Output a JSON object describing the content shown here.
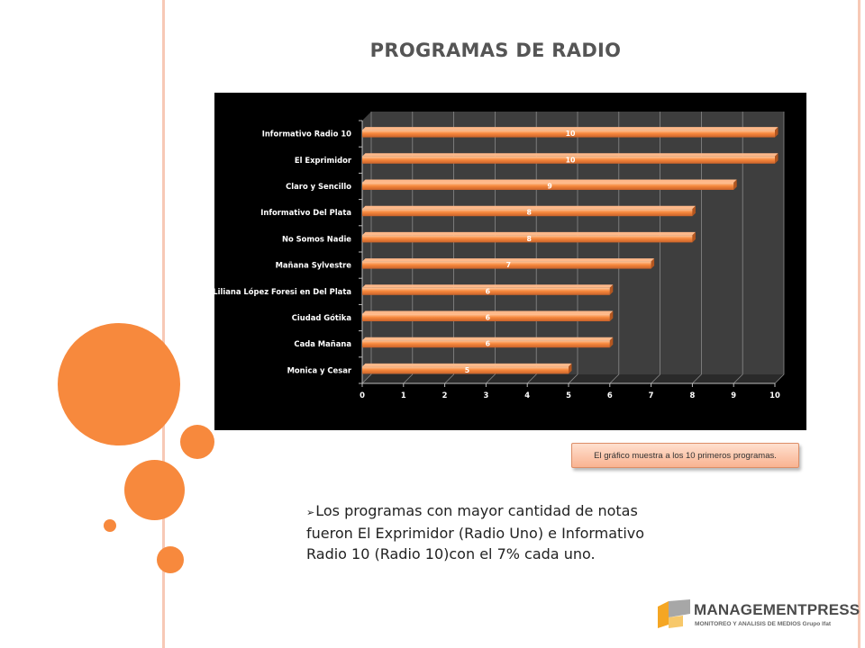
{
  "slide": {
    "title": "PROGRAMAS DE RADIO",
    "note": "El gráfico muestra a los 10 primeros programas.",
    "bullet_icon": "➢",
    "bullet_text": "Los programas con mayor cantidad de notas fueron El Exprimidor (Radio Uno) e Informativo Radio 10 (Radio 10)con el 7% cada uno.",
    "accent_color": "#f7893d"
  },
  "logo": {
    "name": "MANAGEMENTPRESS",
    "tagline": "MONITOREO Y ANALISIS DE MEDIOS Grupo Ifat",
    "icon": "managementpress-logo-mark"
  },
  "chart_data": {
    "type": "bar",
    "orientation": "horizontal",
    "categories": [
      "Informativo Radio 10",
      "El Exprimidor",
      "Claro y Sencillo",
      "Informativo Del Plata",
      "No Somos Nadie",
      "Mañana Sylvestre",
      "Liliana López Foresi en Del Plata",
      "Ciudad Gótika",
      "Cada Mañana",
      "Monica y Cesar"
    ],
    "values": [
      10,
      10,
      9,
      8,
      8,
      7,
      6,
      6,
      6,
      5
    ],
    "xlim": [
      0,
      10
    ],
    "xticks": [
      0,
      1,
      2,
      3,
      4,
      5,
      6,
      7,
      8,
      9,
      10
    ],
    "grid": true,
    "data_labels": true,
    "bar_color": "#f7893d",
    "background": "#000000",
    "title": "",
    "xlabel": "",
    "ylabel": ""
  }
}
